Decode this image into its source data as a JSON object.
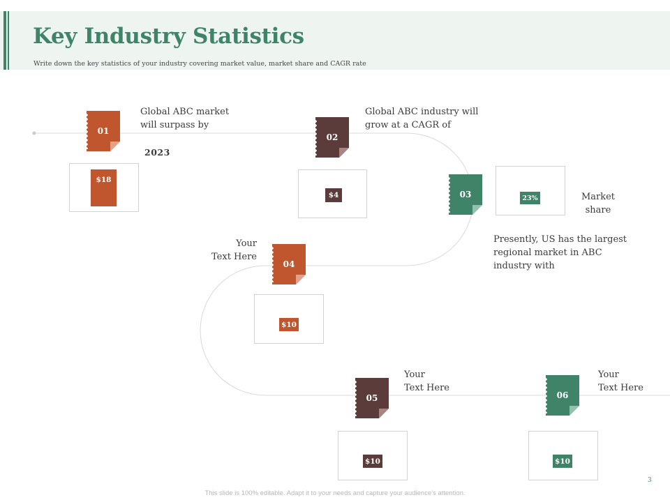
{
  "header": {
    "title": "Key Industry Statistics",
    "subtitle": "Write down the key statistics of your industry covering market value, market share and CAGR rate"
  },
  "colors": {
    "orange": "#c0562d",
    "brown": "#5c3c3a",
    "green": "#3f8468",
    "header_band": "#eef5f1"
  },
  "steps": [
    {
      "number": "01",
      "value": "$18",
      "color": "orange",
      "text": [
        "Global ABC market",
        "will surpass by"
      ],
      "extra": "2023"
    },
    {
      "number": "02",
      "value": "$4",
      "color": "brown",
      "text": [
        "Global ABC industry will",
        "grow at a CAGR of"
      ]
    },
    {
      "number": "03",
      "value": "23%",
      "color": "green",
      "text": [
        "Market",
        "share"
      ]
    },
    {
      "number": "04",
      "value": "$10",
      "color": "orange",
      "text": [
        "Your",
        "Text Here"
      ]
    },
    {
      "number": "05",
      "value": "$10",
      "color": "brown",
      "text": [
        "Your",
        "Text Here"
      ]
    },
    {
      "number": "06",
      "value": "$10",
      "color": "green",
      "text": [
        "Your",
        "Text Here"
      ]
    }
  ],
  "note_03": [
    "Presently, US has the largest",
    "regional market in ABC",
    "industry with"
  ],
  "footer": {
    "disclaimer": "This slide is 100% editable. Adapt it to your needs and capture your audience's attention.",
    "page_number": "3"
  }
}
